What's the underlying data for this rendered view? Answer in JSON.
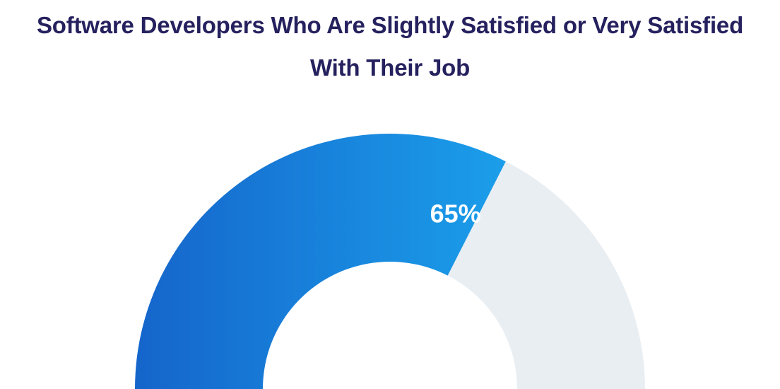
{
  "chart_data": {
    "type": "pie",
    "variant": "half-donut",
    "title_lines": [
      "Software Developers Who Are Slightly Satisfied or Very Satisfied",
      "With Their Job"
    ],
    "slices": [
      {
        "value": 65,
        "label": "65%",
        "color_start": "#1565cb",
        "color_end": "#1b9eea"
      },
      {
        "value": 35,
        "label": "",
        "color": "#e9eef3"
      }
    ],
    "total": 100,
    "legend": "none"
  }
}
